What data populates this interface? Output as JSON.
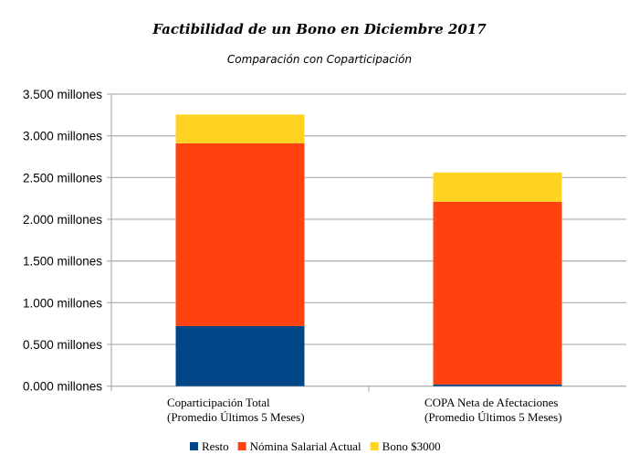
{
  "chart_data": {
    "type": "bar",
    "stacked": true,
    "title": "Factibilidad de un Bono en Diciembre 2017",
    "subtitle": "Comparación con Coparticipación",
    "xlabel": "",
    "ylabel": "",
    "ylim": [
      0,
      3.5
    ],
    "yticks": [
      0,
      0.5,
      1,
      1.5,
      2,
      2.5,
      3,
      3.5
    ],
    "ytick_labels": [
      "0.000 millones",
      "0.500 millones",
      "1.000 millones",
      "1.500 millones",
      "2.000 millones",
      "2.500 millones",
      "3.000 millones",
      "3.500 millones"
    ],
    "grid": true,
    "categories": [
      [
        "Coparticipación Total",
        "(Promedio Últimos 5 Meses)"
      ],
      [
        "COPA Neta de Afectaciones",
        "(Promedio Últimos 5 Meses)"
      ]
    ],
    "series": [
      {
        "name": "Resto",
        "color": "#004586",
        "values": [
          0.72,
          0.02
        ]
      },
      {
        "name": "Nómina Salarial Actual",
        "color": "#ff420e",
        "values": [
          2.19,
          2.19
        ]
      },
      {
        "name": "Bono $3000",
        "color": "#ffd320",
        "values": [
          0.345,
          0.35
        ]
      }
    ],
    "legend_position": "bottom"
  }
}
